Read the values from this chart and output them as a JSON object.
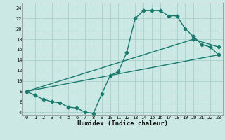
{
  "xlabel": "Humidex (Indice chaleur)",
  "bg_color": "#cce8e4",
  "grid_color": "#aacfcc",
  "line_color": "#1a7a6e",
  "xlim": [
    -0.5,
    23.5
  ],
  "ylim": [
    3.5,
    25
  ],
  "xticks": [
    0,
    1,
    2,
    3,
    4,
    5,
    6,
    7,
    8,
    9,
    10,
    11,
    12,
    13,
    14,
    15,
    16,
    17,
    18,
    19,
    20,
    21,
    22,
    23
  ],
  "yticks": [
    4,
    6,
    8,
    10,
    12,
    14,
    16,
    18,
    20,
    22,
    24
  ],
  "curve1_x": [
    0,
    1,
    2,
    3,
    4,
    5,
    6,
    7,
    8,
    9,
    10,
    11,
    12,
    13,
    14,
    15,
    16,
    17,
    18,
    19,
    20,
    21,
    22,
    23
  ],
  "curve1_y": [
    8,
    7.2,
    6.5,
    6.0,
    5.8,
    5.0,
    4.8,
    4.0,
    3.8,
    7.5,
    11,
    11.8,
    15.5,
    22,
    23.5,
    23.5,
    23.5,
    22.5,
    22.5,
    20,
    18.5,
    17,
    16.5,
    15
  ],
  "curve2_x": [
    0,
    23
  ],
  "curve2_y": [
    8,
    15
  ],
  "curve3_x": [
    0,
    20,
    23
  ],
  "curve3_y": [
    8,
    18,
    16.5
  ],
  "marker": "D",
  "markersize": 2.5,
  "linewidth": 1.0
}
